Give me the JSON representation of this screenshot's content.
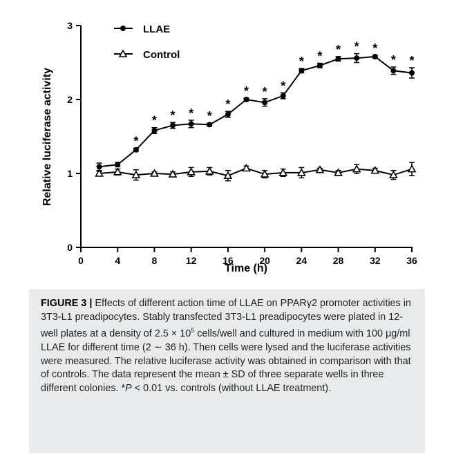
{
  "chart_data": {
    "type": "line",
    "x": [
      2,
      4,
      6,
      8,
      10,
      12,
      14,
      16,
      18,
      20,
      22,
      24,
      26,
      28,
      30,
      32,
      34,
      36
    ],
    "series": [
      {
        "name": "LLAE",
        "marker": "filled-circle",
        "values": [
          1.09,
          1.12,
          1.32,
          1.58,
          1.65,
          1.67,
          1.66,
          1.8,
          2.0,
          1.96,
          2.05,
          2.39,
          2.46,
          2.55,
          2.56,
          2.58,
          2.39,
          2.36
        ],
        "errors": [
          0.05,
          0.03,
          0.02,
          0.04,
          0.04,
          0.05,
          0.02,
          0.04,
          0.02,
          0.05,
          0.04,
          0.03,
          0.03,
          0.03,
          0.06,
          0.02,
          0.05,
          0.07
        ],
        "significant": [
          false,
          false,
          true,
          true,
          true,
          true,
          true,
          true,
          true,
          true,
          true,
          true,
          true,
          true,
          true,
          true,
          true,
          true
        ]
      },
      {
        "name": "Control",
        "marker": "open-triangle",
        "values": [
          1.0,
          1.02,
          0.98,
          1.0,
          0.99,
          1.02,
          1.03,
          0.97,
          1.07,
          0.99,
          1.01,
          1.01,
          1.05,
          1.01,
          1.06,
          1.04,
          0.98,
          1.06
        ],
        "errors": [
          0.03,
          0.04,
          0.07,
          0.02,
          0.03,
          0.06,
          0.05,
          0.07,
          0.03,
          0.05,
          0.05,
          0.07,
          0.02,
          0.03,
          0.06,
          0.03,
          0.06,
          0.09
        ]
      }
    ],
    "significance_marker": "*",
    "xlabel": "Time (h)",
    "ylabel": "Relative luciferase activity",
    "xlim": [
      0,
      36
    ],
    "ylim": [
      0,
      3
    ],
    "xticks": [
      0,
      4,
      8,
      12,
      16,
      20,
      24,
      28,
      32,
      36
    ],
    "yticks": [
      0,
      1,
      2,
      3
    ],
    "grid": false,
    "legend_position": "top-left"
  },
  "caption": {
    "label": "FIGURE 3 |",
    "text_1": " Effects of different action time of LLAE on PPARγ2 promoter activities in 3T3-L1 preadipocytes. Stably transfected 3T3-L1 preadipocytes were plated in 12-well plates at a density of 2.5 × 10",
    "sup": "5",
    "text_2": " cells/well and cultured in medium with 100 μg/ml LLAE for different time (2 ∼ 36 h). Then cells were lysed and the luciferase activities were measured. The relative luciferase activity was obtained in comparison with that of controls. The data represent the mean ± SD of three separate wells in three different colonies. *",
    "p_italic": "P",
    "text_3": " < 0.01 vs. controls (without LLAE treatment)."
  }
}
